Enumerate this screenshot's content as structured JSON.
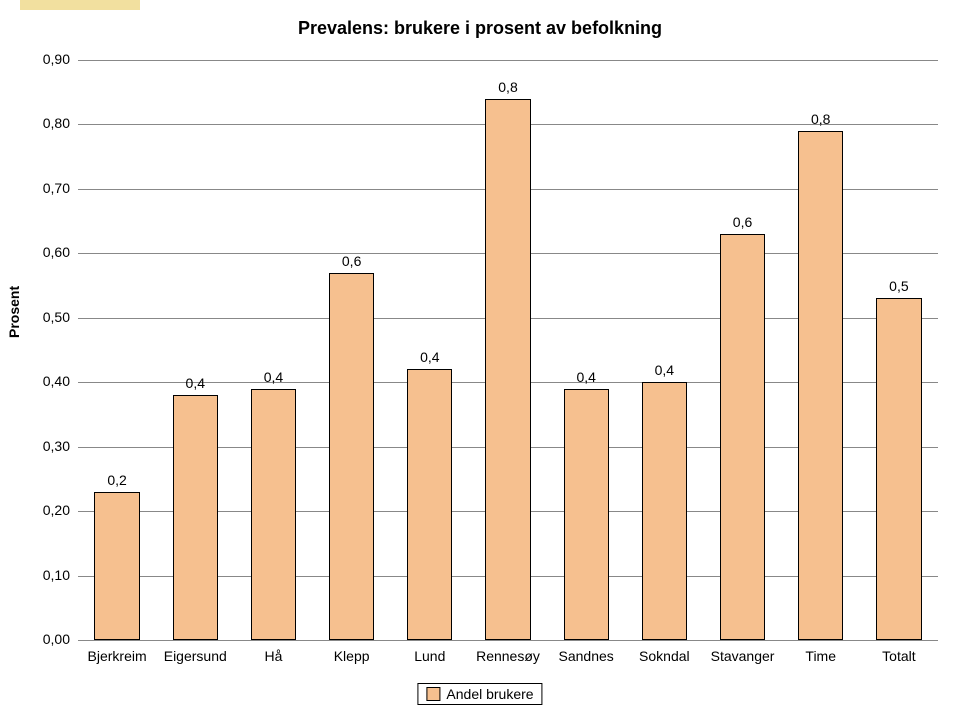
{
  "chart": {
    "type": "bar",
    "title": "Prevalens: brukere i prosent av befolkning",
    "y_axis_label": "Prosent",
    "categories": [
      "Bjerkreim",
      "Eigersund",
      "Hå",
      "Klepp",
      "Lund",
      "Rennesøy",
      "Sandnes",
      "Sokndal",
      "Stavanger",
      "Time",
      "Totalt"
    ],
    "values": [
      0.23,
      0.38,
      0.39,
      0.57,
      0.42,
      0.84,
      0.39,
      0.4,
      0.63,
      0.79,
      0.53
    ],
    "value_labels": [
      "0,2",
      "0,4",
      "0,4",
      "0,6",
      "0,4",
      "0,8",
      "0,4",
      "0,4",
      "0,6",
      "0,8",
      "0,5"
    ],
    "bar_color": "#f6c08f",
    "bar_border": "#000000",
    "bar_width_ratio": 0.58,
    "ylim": [
      0.0,
      0.9
    ],
    "ytick_step": 0.1,
    "yticks": [
      "0,00",
      "0,10",
      "0,20",
      "0,30",
      "0,40",
      "0,50",
      "0,60",
      "0,70",
      "0,80",
      "0,90"
    ],
    "grid_color": "#888888",
    "background_color": "#ffffff",
    "title_fontsize": 18,
    "label_fontsize": 14,
    "legend_label": "Andel brukere"
  },
  "tab_color": "#f2e09f"
}
